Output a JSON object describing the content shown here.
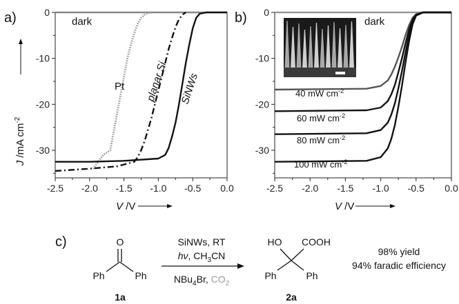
{
  "chart_data": [
    {
      "type": "line",
      "panel_label": "a)",
      "xlabel": "V /V",
      "ylabel": "J /mA cm-2",
      "xlim": [
        -2.5,
        0
      ],
      "ylim": [
        -36,
        0
      ],
      "xticks": [
        "-2.5",
        "-2.0",
        "-1.5",
        "-1.0",
        "-0.5",
        "0.0"
      ],
      "yticks": [
        "-30",
        "-20",
        "-10",
        "0"
      ],
      "series": [
        {
          "name": "dark",
          "color": "#888888",
          "style": "solid",
          "x": [
            -2.5,
            -2.0,
            -1.5,
            -1.0,
            -0.5,
            0.0
          ],
          "y": [
            0,
            0,
            0,
            0,
            0,
            0
          ]
        },
        {
          "name": "Pt",
          "color": "#999999",
          "style": "dotted",
          "x": [
            -1.95,
            -1.8,
            -1.7,
            -1.65,
            -1.6,
            -1.55,
            -1.5,
            -1.45,
            -1.4,
            -1.35,
            -1.3,
            -1.25,
            -1.2,
            -1.15,
            -1.1
          ],
          "y": [
            -34,
            -31,
            -30,
            -26,
            -22,
            -18,
            -14,
            -10,
            -7,
            -4.5,
            -2.5,
            -1.2,
            -0.5,
            -0.1,
            0
          ]
        },
        {
          "name": "planar Si",
          "color": "#111111",
          "style": "dashdot",
          "x": [
            -2.5,
            -2.0,
            -1.6,
            -1.35,
            -1.3,
            -1.25,
            -1.2,
            -1.15,
            -1.1,
            -1.05,
            -1.0,
            -0.95,
            -0.9,
            -0.85,
            -0.8,
            -0.75,
            -0.7,
            -0.65,
            -0.6
          ],
          "y": [
            -34.5,
            -34,
            -33.5,
            -32.5,
            -31.5,
            -30,
            -28,
            -25.5,
            -23,
            -20,
            -17,
            -14,
            -11,
            -8,
            -5.5,
            -3.2,
            -1.5,
            -0.5,
            0
          ]
        },
        {
          "name": "SiNWs",
          "color": "#111111",
          "style": "solid",
          "x": [
            -2.5,
            -2.0,
            -1.5,
            -1.0,
            -0.9,
            -0.85,
            -0.8,
            -0.75,
            -0.7,
            -0.65,
            -0.6,
            -0.55,
            -0.5,
            -0.45,
            -0.4,
            -0.3,
            0.0
          ],
          "y": [
            -32.5,
            -32.5,
            -32.3,
            -31.8,
            -31,
            -29.5,
            -27,
            -24,
            -20,
            -15.5,
            -11,
            -7,
            -3.5,
            -1.2,
            -0.3,
            0,
            0
          ]
        }
      ]
    },
    {
      "type": "line",
      "panel_label": "b)",
      "xlabel": "V /V",
      "ylabel": "",
      "xlim": [
        -2.5,
        0
      ],
      "ylim": [
        -36,
        0
      ],
      "xticks": [
        "-2.5",
        "-2.0",
        "-1.5",
        "-1.0",
        "-0.5",
        "0.0"
      ],
      "yticks": [
        "-30",
        "-20",
        "-10",
        "0"
      ],
      "series": [
        {
          "name": "dark",
          "color": "#999999",
          "style": "solid",
          "x": [
            -2.5,
            -2.0,
            -1.5,
            -1.0,
            -0.5,
            0.0
          ],
          "y": [
            0,
            0,
            0,
            0,
            0,
            0
          ]
        },
        {
          "name": "40 mW cm-2",
          "color": "#555555",
          "style": "solid",
          "x": [
            -2.5,
            -1.2,
            -1.0,
            -0.9,
            -0.85,
            -0.8,
            -0.75,
            -0.7,
            -0.65,
            -0.6,
            -0.55,
            -0.5,
            -0.4,
            0.0
          ],
          "y": [
            -16.8,
            -16.6,
            -16,
            -14.8,
            -13.5,
            -11.8,
            -9.8,
            -7.5,
            -5,
            -2.8,
            -1.2,
            -0.4,
            0,
            0
          ]
        },
        {
          "name": "60 mW cm-2",
          "color": "#111111",
          "style": "solid",
          "x": [
            -2.5,
            -1.2,
            -1.0,
            -0.9,
            -0.85,
            -0.8,
            -0.75,
            -0.7,
            -0.65,
            -0.6,
            -0.55,
            -0.5,
            -0.4,
            0.0
          ],
          "y": [
            -21.5,
            -21.3,
            -20.7,
            -19.3,
            -17.8,
            -15.8,
            -13,
            -10,
            -6.8,
            -3.8,
            -1.6,
            -0.5,
            0,
            0
          ]
        },
        {
          "name": "80 mW cm-2",
          "color": "#111111",
          "style": "solid",
          "x": [
            -2.5,
            -1.2,
            -1.0,
            -0.9,
            -0.85,
            -0.8,
            -0.75,
            -0.7,
            -0.65,
            -0.6,
            -0.55,
            -0.5,
            -0.4,
            0.0
          ],
          "y": [
            -26.5,
            -26.3,
            -25.6,
            -24,
            -22.2,
            -19.8,
            -16.5,
            -12.8,
            -8.8,
            -5,
            -2.1,
            -0.6,
            0,
            0
          ]
        },
        {
          "name": "100 mW cm-2",
          "color": "#111111",
          "style": "solid",
          "x": [
            -2.5,
            -1.2,
            -1.0,
            -0.9,
            -0.85,
            -0.8,
            -0.75,
            -0.7,
            -0.65,
            -0.6,
            -0.55,
            -0.5,
            -0.4,
            0.0
          ],
          "y": [
            -32.5,
            -32.3,
            -31.5,
            -29.6,
            -27.5,
            -24.5,
            -20.5,
            -16,
            -11,
            -6.3,
            -2.6,
            -0.7,
            0,
            0
          ]
        }
      ]
    }
  ],
  "panel_c": {
    "panel_label": "c)",
    "reactant": {
      "carbonyl_o": "O",
      "left": "Ph",
      "right": "Ph",
      "label": "1a"
    },
    "conditions_top": [
      "SiNWs, RT",
      "hν, CH3CN"
    ],
    "conditions_bottom": [
      "NBu4Br, CO2"
    ],
    "product": {
      "ho": "HO",
      "cooh": "COOH",
      "left": "Ph",
      "right": "Ph",
      "label": "2a"
    },
    "result": [
      "98% yield",
      "94% faradic efficiency"
    ]
  },
  "colors": {
    "co2": "#9a9a9a",
    "axis": "#222222",
    "inset_bg": "#1a1a1a"
  }
}
